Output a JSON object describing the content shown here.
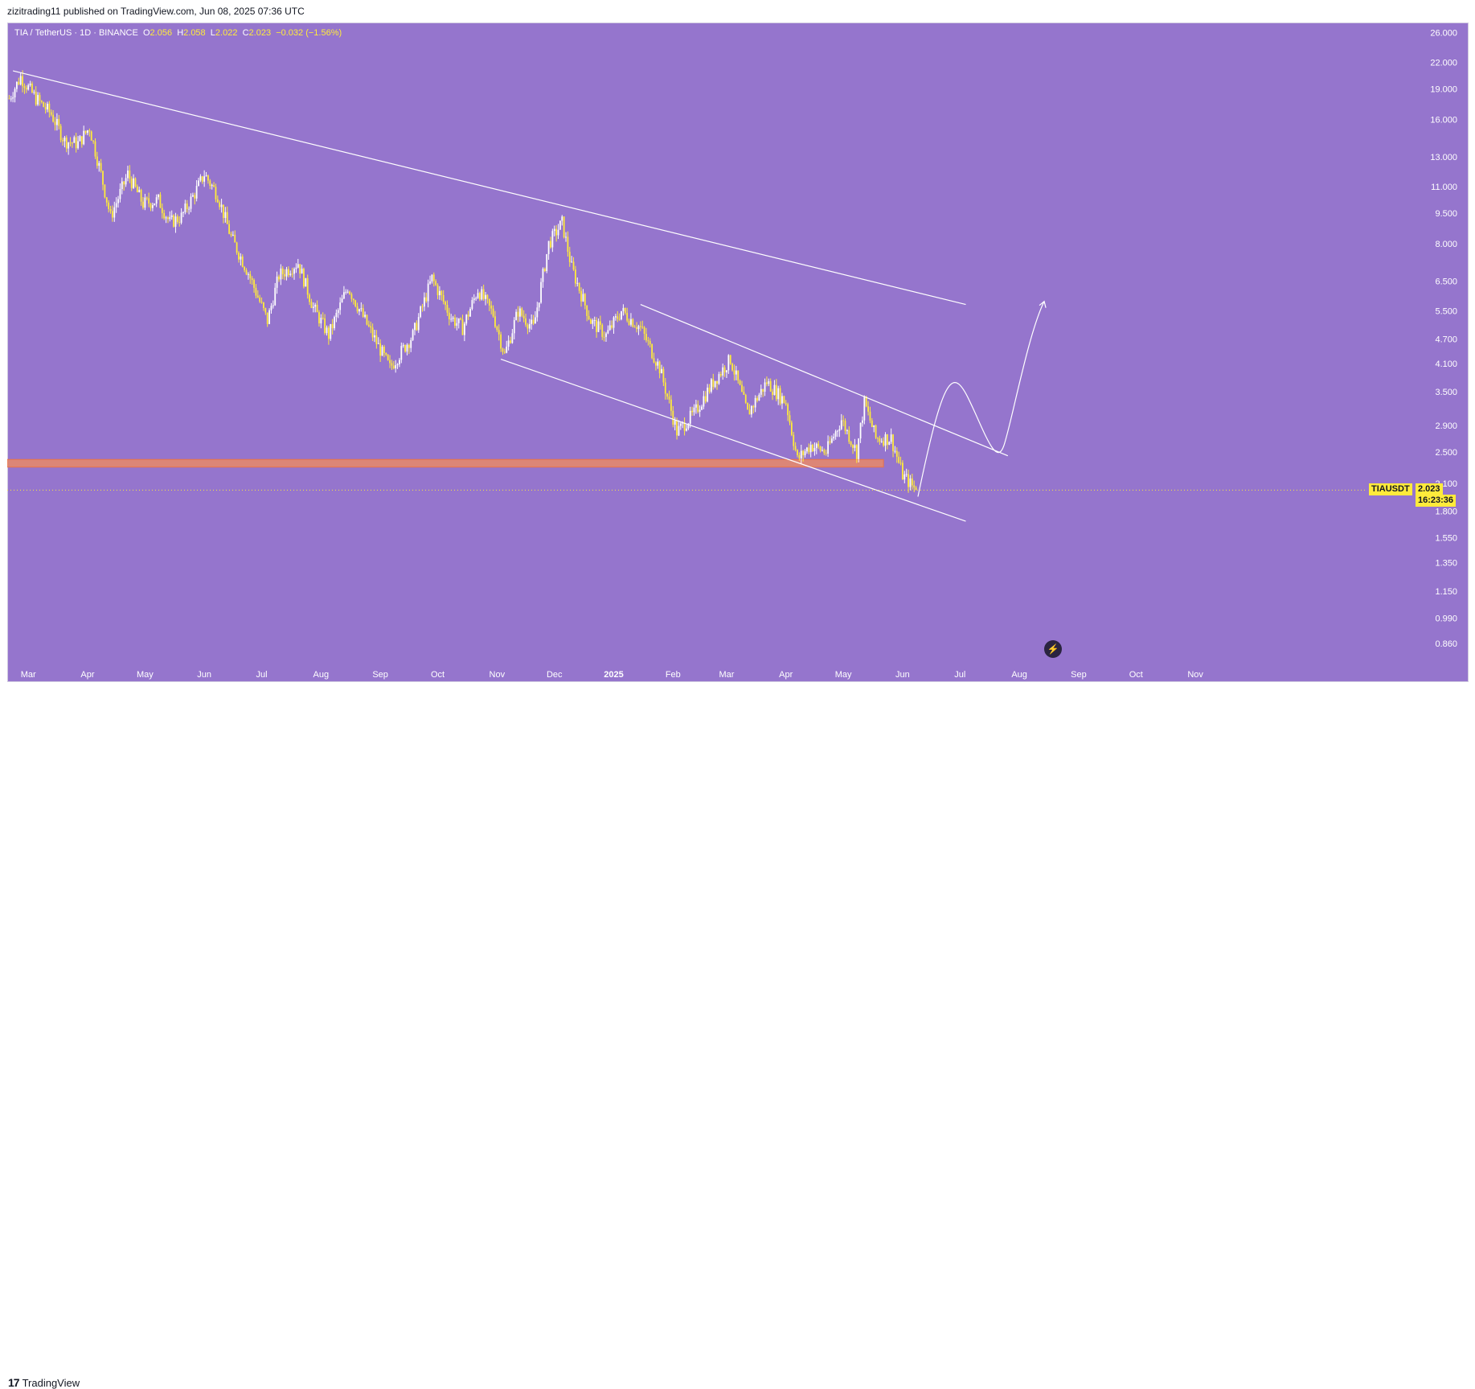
{
  "header": {
    "publish_line": "zizitrading11 published on TradingView.com, Jun 08, 2025 07:36 UTC"
  },
  "symbol_info": {
    "title": "TIA / TetherUS · 1D · BINANCE",
    "o_label": "O",
    "o": "2.056",
    "h_label": "H",
    "h": "2.058",
    "l_label": "L",
    "l": "2.022",
    "c_label": "C",
    "c": "2.023",
    "change": "−0.032 (−1.56%)"
  },
  "price_tag": {
    "symbol": "TIAUSDT",
    "price": "2.023",
    "countdown": "16:23:36"
  },
  "footer": {
    "logo_text": "TradingView",
    "logo_mark": "17"
  },
  "colors": {
    "background": "#9575cd",
    "candle": "#ffeb3b",
    "candle_alt": "#ffffff",
    "trendline": "#ffffff",
    "support_zone": "#f48c5a"
  },
  "icons": {
    "flash": "lightning-icon"
  },
  "chart_data": {
    "type": "candlestick",
    "title": "TIA / TetherUS · 1D · BINANCE",
    "scale": "log",
    "ylim": [
      0.8,
      27.5
    ],
    "y_ticks": [
      "26.000",
      "22.000",
      "19.000",
      "16.000",
      "13.000",
      "11.000",
      "9.500",
      "8.000",
      "6.500",
      "5.500",
      "4.700",
      "4.100",
      "3.500",
      "2.900",
      "2.500",
      "2.100",
      "1.800",
      "1.550",
      "1.350",
      "1.150",
      "0.990",
      "0.860"
    ],
    "x_ticks": [
      "Mar",
      "Apr",
      "May",
      "Jun",
      "Jul",
      "Aug",
      "Sep",
      "Oct",
      "Nov",
      "Dec",
      "2025",
      "Feb",
      "Mar",
      "Apr",
      "May",
      "Jun",
      "Jul",
      "Aug",
      "Sep",
      "Oct",
      "Nov"
    ],
    "x_ticks_bold": [
      "2025"
    ],
    "series": [
      {
        "type": "close_path",
        "points": [
          [
            "Feb 20 2024",
            18.0
          ],
          [
            "Feb 26 2024",
            20.3
          ],
          [
            "Mar 5 2024",
            18.0
          ],
          [
            "Mar 13 2024",
            16.5
          ],
          [
            "Mar 20 2024",
            14.2
          ],
          [
            "Mar 27 2024",
            14.0
          ],
          [
            "Apr 2 2024",
            15.3
          ],
          [
            "Apr 8 2024",
            11.8
          ],
          [
            "Apr 13 2024",
            9.3
          ],
          [
            "Apr 22 2024",
            11.8
          ],
          [
            "Apr 30 2024",
            10.0
          ],
          [
            "May 8 2024",
            10.2
          ],
          [
            "May 14 2024",
            9.0
          ],
          [
            "May 20 2024",
            9.3
          ],
          [
            "May 27 2024",
            10.6
          ],
          [
            "Jun 1 2024",
            11.8
          ],
          [
            "Jun 8 2024",
            10.5
          ],
          [
            "Jun 15 2024",
            8.3
          ],
          [
            "Jun 24 2024",
            6.8
          ],
          [
            "Jul 4 2024",
            5.2
          ],
          [
            "Jul 10 2024",
            6.7
          ],
          [
            "Jul 20 2024",
            7.2
          ],
          [
            "Jul 28 2024",
            5.6
          ],
          [
            "Aug 5 2024",
            4.8
          ],
          [
            "Aug 15 2024",
            6.3
          ],
          [
            "Aug 25 2024",
            5.1
          ],
          [
            "Sep 6 2024",
            4.0
          ],
          [
            "Sep 18 2024",
            4.8
          ],
          [
            "Sep 28 2024",
            6.6
          ],
          [
            "Oct 8 2024",
            5.3
          ],
          [
            "Oct 14 2024",
            5.0
          ],
          [
            "Oct 22 2024",
            6.2
          ],
          [
            "Oct 30 2024",
            5.4
          ],
          [
            "Nov 5 2024",
            4.3
          ],
          [
            "Nov 12 2024",
            5.5
          ],
          [
            "Nov 20 2024",
            5.0
          ],
          [
            "Nov 28 2024",
            8.0
          ],
          [
            "Dec 5 2024",
            9.0
          ],
          [
            "Dec 10 2024",
            7.0
          ],
          [
            "Dec 20 2024",
            5.2
          ],
          [
            "Dec 28 2024",
            4.8
          ],
          [
            "Jan 5 2025",
            5.5
          ],
          [
            "Jan 15 2025",
            5.0
          ],
          [
            "Jan 25 2025",
            4.0
          ],
          [
            "Feb 3 2025",
            2.8
          ],
          [
            "Feb 12 2025",
            3.1
          ],
          [
            "Feb 22 2025",
            3.7
          ],
          [
            "Mar 3 2025",
            4.2
          ],
          [
            "Mar 12 2025",
            3.1
          ],
          [
            "Mar 22 2025",
            3.7
          ],
          [
            "Apr 1 2025",
            3.3
          ],
          [
            "Apr 7 2025",
            2.4
          ],
          [
            "Apr 14 2025",
            2.6
          ],
          [
            "Apr 22 2025",
            2.5
          ],
          [
            "Apr 30 2025",
            3.0
          ],
          [
            "May 8 2025",
            2.5
          ],
          [
            "May 12 2025",
            3.3
          ],
          [
            "May 18 2025",
            2.7
          ],
          [
            "May 26 2025",
            2.7
          ],
          [
            "Jun 1 2025",
            2.2
          ],
          [
            "Jun 8 2025",
            2.023
          ]
        ]
      }
    ],
    "annotations": [
      {
        "type": "trendline",
        "from": [
          "Feb 22 2024",
          21.0
        ],
        "to": [
          "Jul 4 2025",
          5.7
        ]
      },
      {
        "type": "trendline",
        "from": [
          "Jan 15 2025",
          5.7
        ],
        "to": [
          "Jul 26 2025",
          2.45
        ]
      },
      {
        "type": "trendline",
        "from": [
          "Nov 3 2024",
          4.2
        ],
        "to": [
          "Jul 4 2025",
          1.7
        ]
      },
      {
        "type": "zone",
        "from_date": "Feb 19 2024",
        "to_date": "May 22 2025",
        "low": 2.3,
        "high": 2.4
      },
      {
        "type": "projection_curve",
        "points": [
          [
            "Jun 9 2025",
            1.95
          ],
          [
            "Jul 5 2025",
            3.4
          ],
          [
            "Jul 24 2025",
            2.6
          ],
          [
            "Aug 14 2025",
            5.8
          ]
        ]
      },
      {
        "type": "price_line",
        "value": 2.023
      }
    ]
  }
}
